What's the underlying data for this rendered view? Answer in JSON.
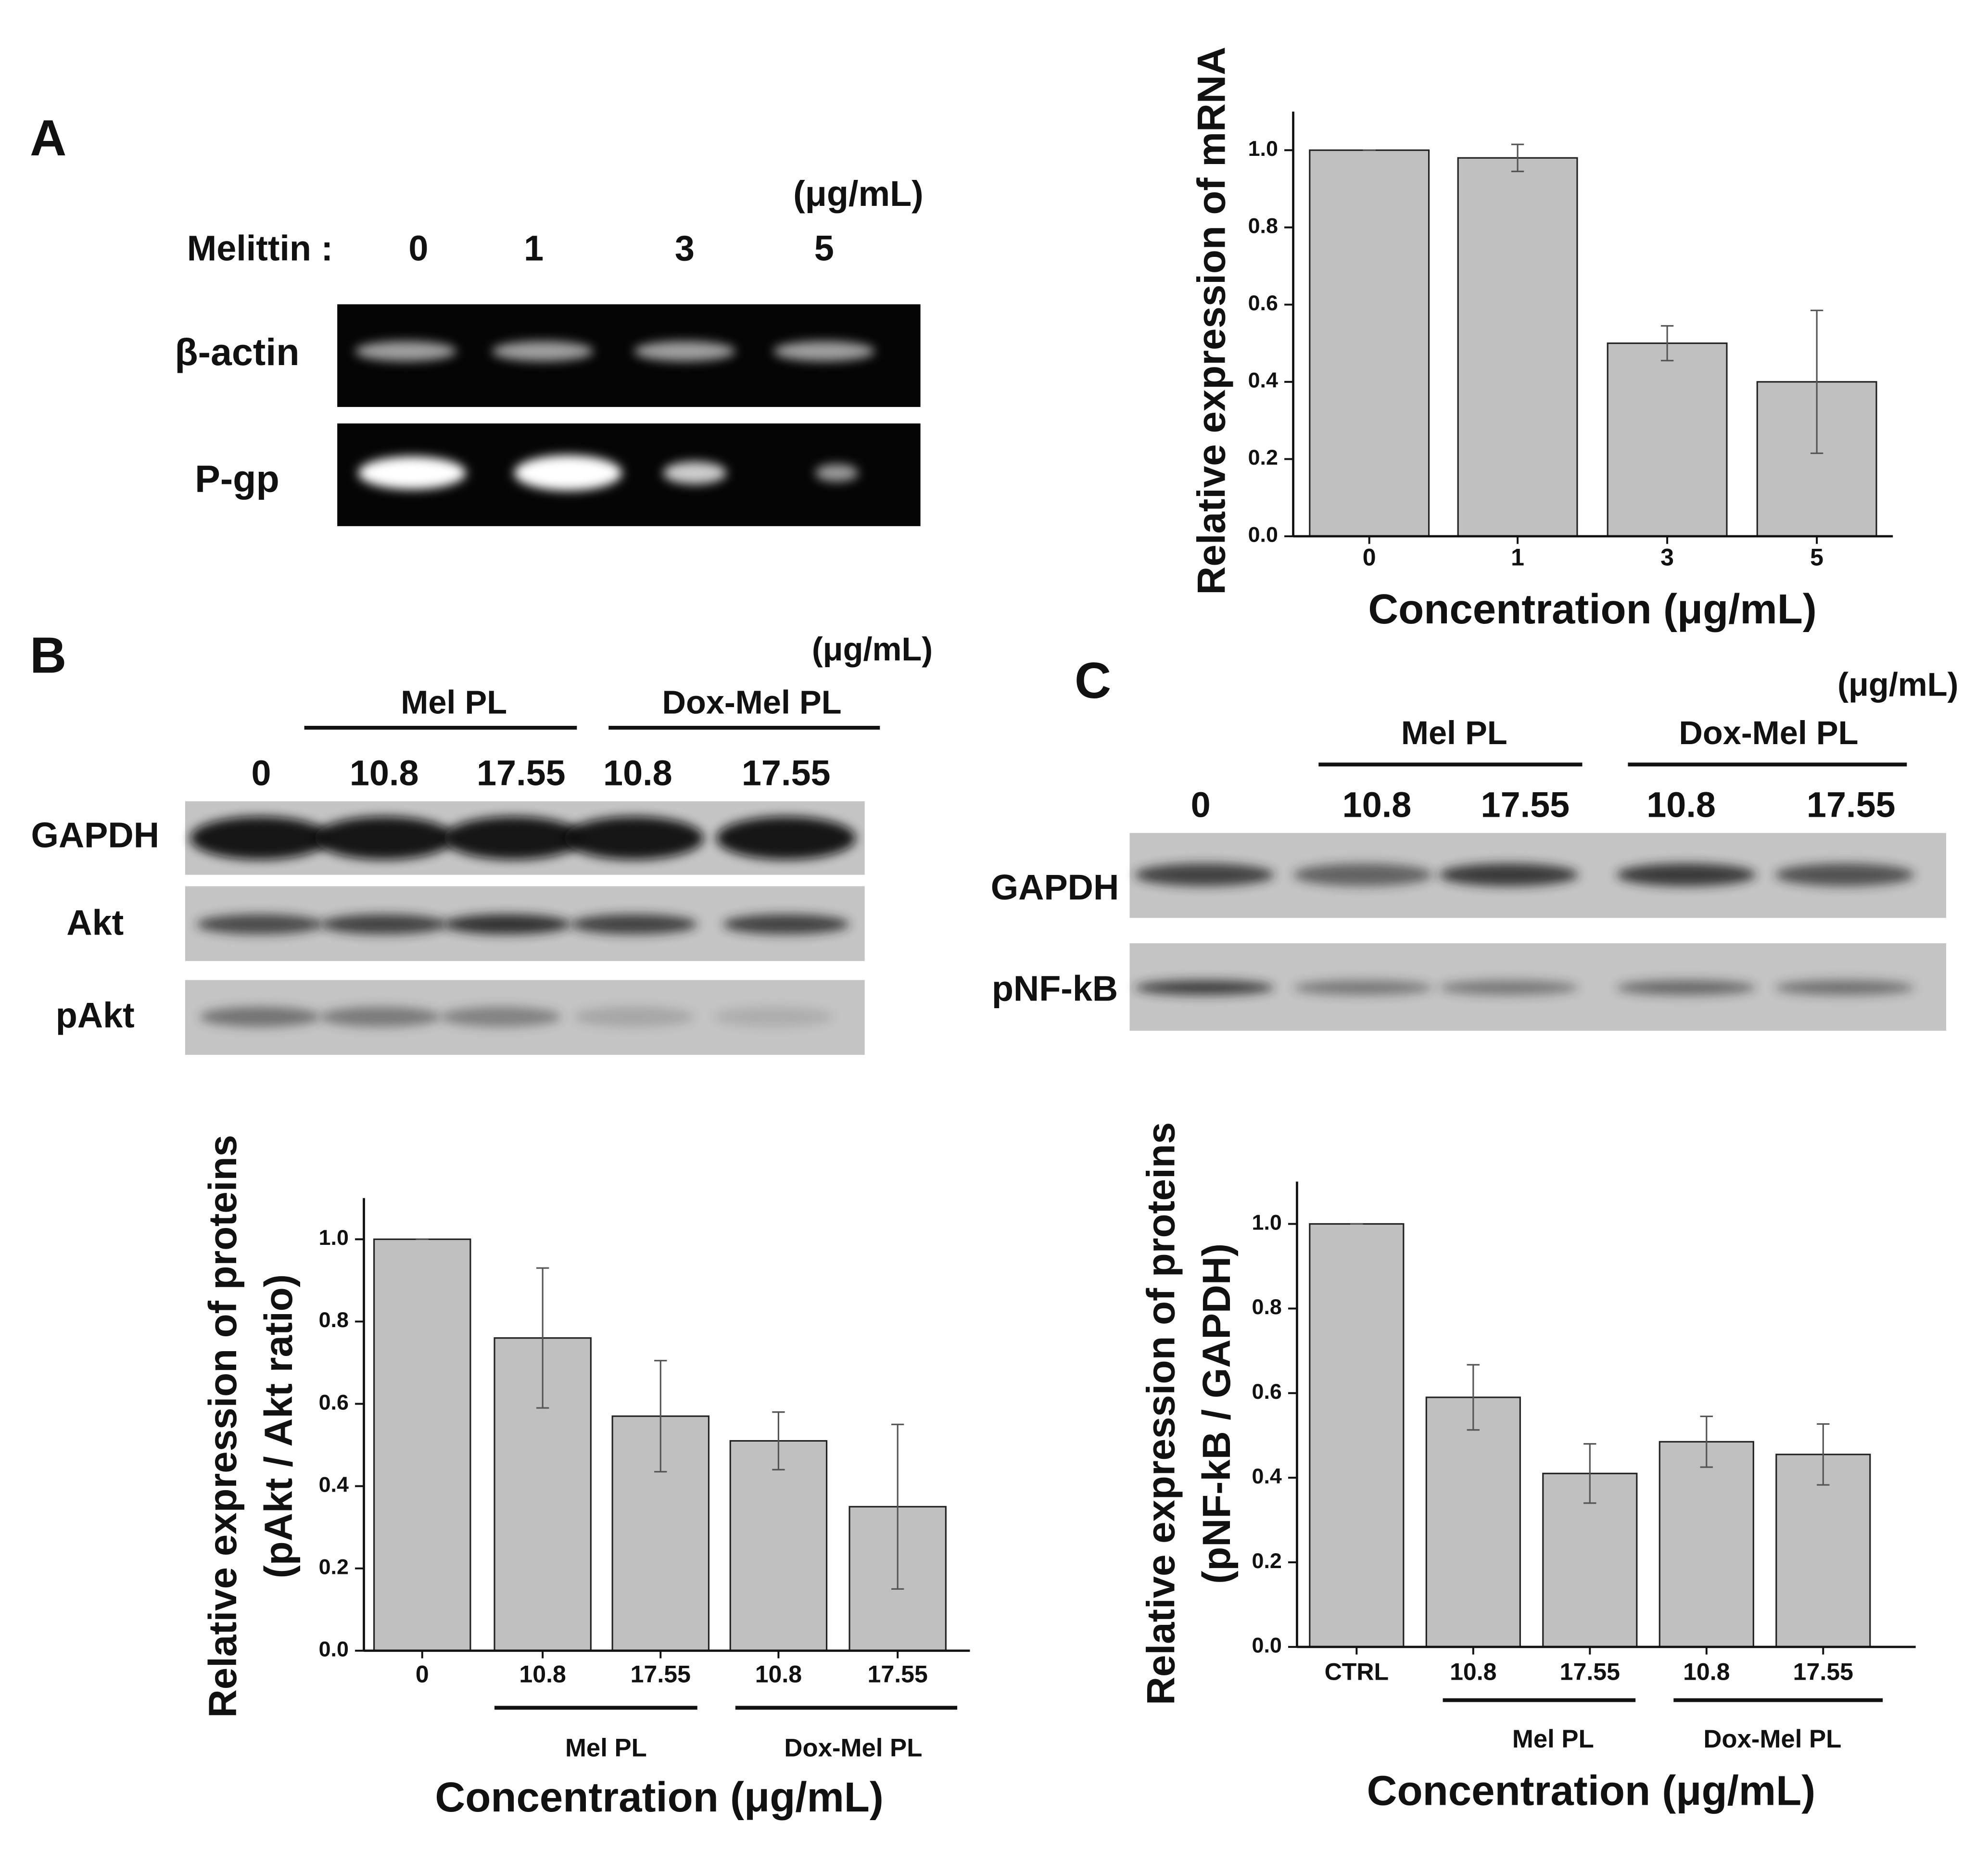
{
  "chart_data": [
    {
      "type": "bar",
      "categories": [
        "0",
        "1",
        "3",
        "5"
      ],
      "values": [
        1.0,
        0.98,
        0.5,
        0.4
      ],
      "errors": [
        0,
        0.035,
        0.045,
        0.185
      ],
      "color": "#c0c0c0",
      "ylim": [
        0,
        1.1
      ],
      "yticks": [
        {
          "value": 0,
          "label": "0.0"
        },
        0.2,
        0.4,
        0.6,
        0.8,
        {
          "value": 1,
          "label": "1.0"
        }
      ],
      "x_label": "Concentration (μg/mL)",
      "y_label": [
        "Relative expression of mRNA"
      ]
    },
    {
      "type": "bar",
      "categories": [
        "0",
        "10.8",
        "17.55",
        "10.8",
        "17.55"
      ],
      "values": [
        1.0,
        0.76,
        0.57,
        0.51,
        0.35
      ],
      "errors": [
        0,
        0.17,
        0.135,
        0.07,
        0.2
      ],
      "color": "#c0c0c0",
      "ylim": [
        0,
        1.1
      ],
      "yticks": [
        {
          "value": 0,
          "label": "0.0"
        },
        0.2,
        0.4,
        0.6,
        0.8,
        {
          "value": 1,
          "label": "1.0"
        }
      ],
      "group_labels": [
        "Mel PL",
        "Dox-Mel PL"
      ],
      "x_label": "Concentration (μg/mL)",
      "y_label": [
        "Relative expression of proteins",
        "(pAkt / Akt ratio)"
      ]
    },
    {
      "type": "bar",
      "categories": [
        "CTRL",
        "10.8",
        "17.55",
        "10.8",
        "17.55"
      ],
      "values": [
        1.0,
        0.59,
        0.41,
        0.485,
        0.455
      ],
      "errors": [
        0,
        0.077,
        0.07,
        0.06,
        0.072
      ],
      "color": "#c0c0c0",
      "ylim": [
        0,
        1.1
      ],
      "yticks": [
        {
          "value": 0,
          "label": "0.0"
        },
        0.2,
        0.4,
        0.6,
        0.8,
        {
          "value": 1,
          "label": "1.0"
        }
      ],
      "group_labels": [
        "Mel PL",
        "Dox-Mel PL"
      ],
      "x_label": "Concentration (μg/mL)",
      "y_label": [
        "Relative expression of proteins",
        "(pNF-kB / GAPDH)"
      ]
    }
  ],
  "panel_A": {
    "label": "A",
    "unit": "(μg/mL)",
    "treatment": "Melittin :",
    "lanes": [
      "0",
      "1",
      "3",
      "5"
    ],
    "rows": [
      "β-actin",
      "P-gp"
    ]
  },
  "panel_B": {
    "label": "B",
    "unit": "(μg/mL)",
    "groups": [
      "Mel PL",
      "Dox-Mel PL"
    ],
    "lanes": [
      "0",
      "10.8",
      "17.55",
      "10.8",
      "17.55"
    ],
    "rows": [
      "GAPDH",
      "Akt",
      "pAkt"
    ]
  },
  "panel_C": {
    "label": "C",
    "unit": "(μg/mL)",
    "groups": [
      "Mel PL",
      "Dox-Mel PL"
    ],
    "lanes": [
      "0",
      "10.8",
      "17.55",
      "10.8",
      "17.55"
    ],
    "rows": [
      "GAPDH",
      "pNF-kB"
    ]
  }
}
